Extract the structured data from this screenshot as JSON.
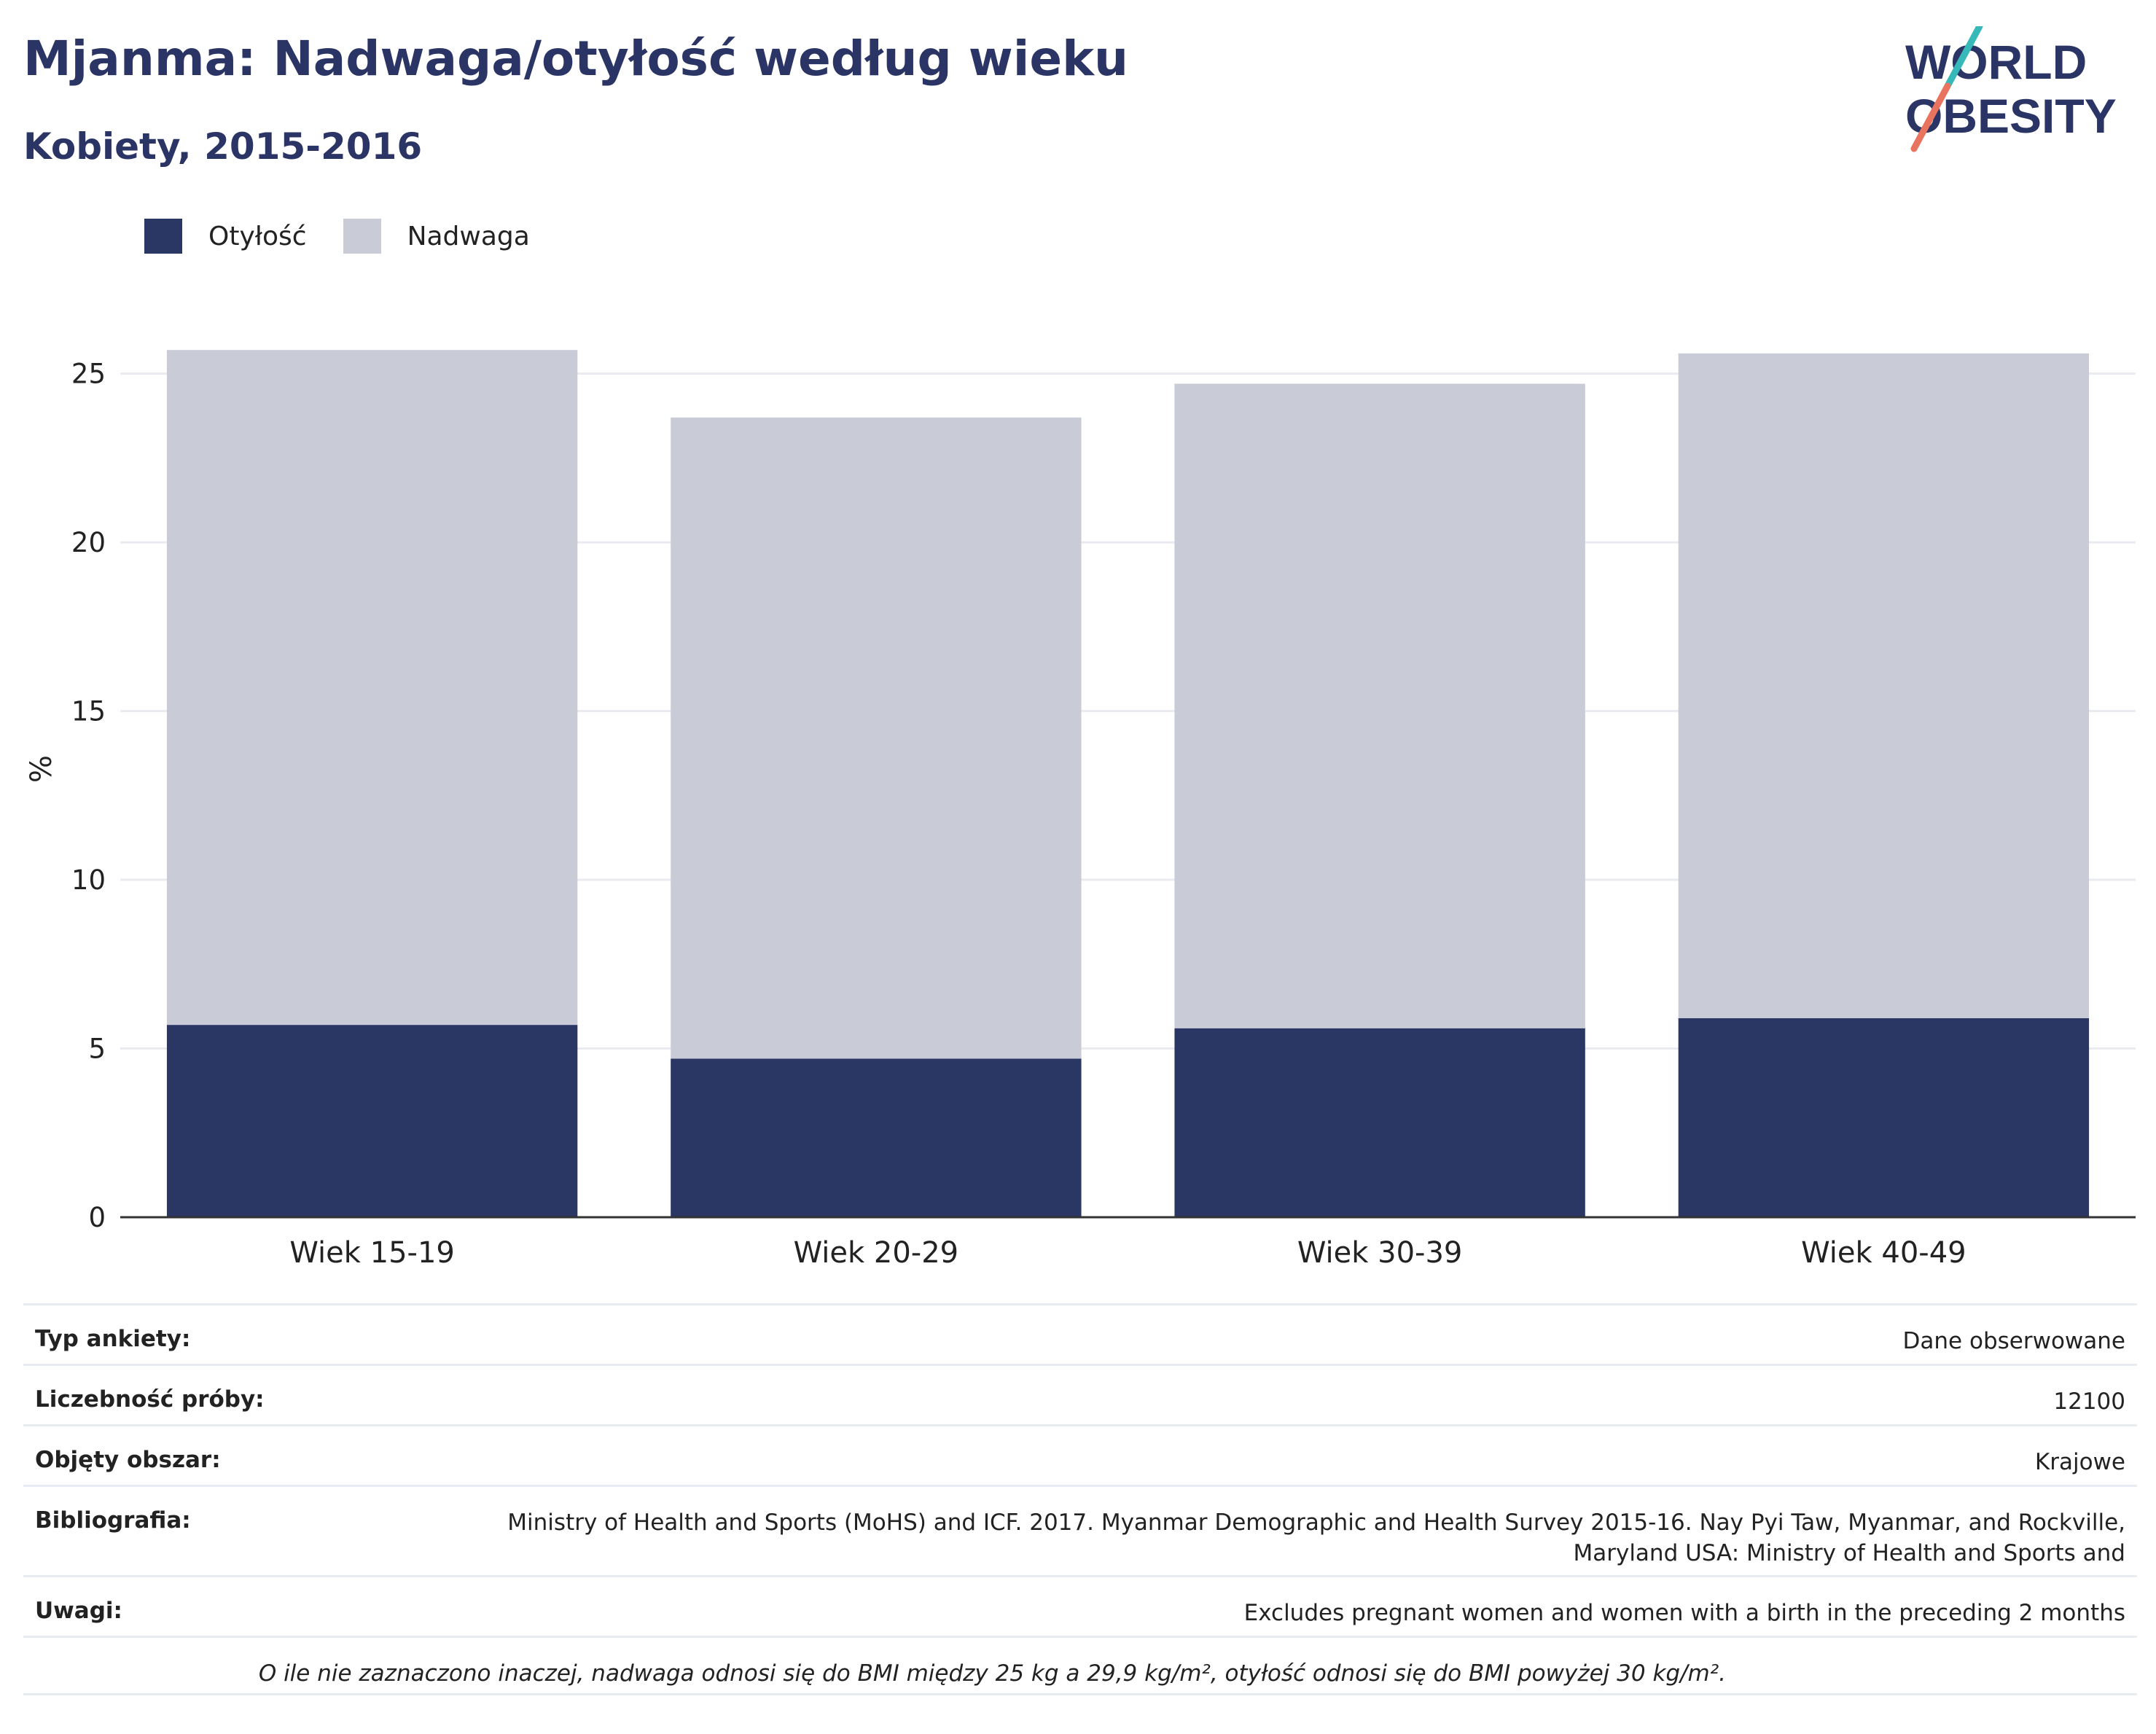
{
  "header": {
    "title": "Mjanma: Nadwaga/otyłość według wieku",
    "subtitle": "Kobiety, 2015-2016",
    "logo_line1": "WORLD",
    "logo_line2": "OBESITY"
  },
  "legend": [
    {
      "label": "Otyłość",
      "color": "#2a3664"
    },
    {
      "label": "Nadwaga",
      "color": "#c9cbd7"
    }
  ],
  "chart_data": {
    "type": "bar",
    "stacked": true,
    "categories": [
      "Wiek 15-19",
      "Wiek 20-29",
      "Wiek 30-39",
      "Wiek 40-49"
    ],
    "series": [
      {
        "name": "Otyłość",
        "color": "#2a3664",
        "values": [
          5.7,
          4.7,
          5.6,
          5.9
        ]
      },
      {
        "name": "Nadwaga",
        "color": "#c9cbd7",
        "values": [
          20.0,
          19.0,
          19.1,
          19.7
        ]
      }
    ],
    "ylabel": "%",
    "ylim": [
      0,
      27
    ],
    "yticks": [
      0,
      5,
      10,
      15,
      20,
      25
    ],
    "grid": true,
    "legend_position": "top-left"
  },
  "info": {
    "survey_type_label": "Typ ankiety:",
    "survey_type_value": "Dane obserwowane",
    "sample_size_label": "Liczebność próby:",
    "sample_size_value": "12100",
    "area_label": "Objęty obszar:",
    "area_value": "Krajowe",
    "bibliography_label": "Bibliografia:",
    "bibliography_value": "Ministry of Health and Sports (MoHS) and ICF. 2017. Myanmar Demographic and Health Survey 2015-16. Nay Pyi Taw, Myanmar, and Rockville, Maryland USA: Ministry of Health and Sports and",
    "notes_label": "Uwagi:",
    "notes_value": "Excludes pregnant women and women with a birth in the preceding 2 months",
    "footnote": "O ile nie zaznaczono inaczej, nadwaga odnosi się do BMI między 25 kg a 29,9 kg/m², otyłość odnosi się do BMI powyżej 30 kg/m²."
  }
}
